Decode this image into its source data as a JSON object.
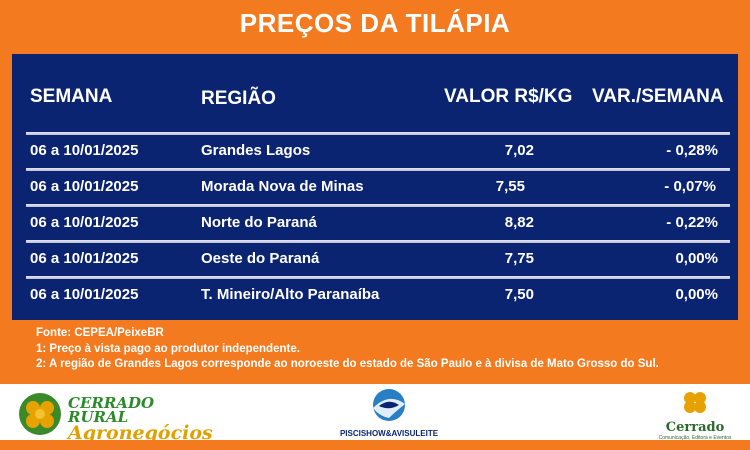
{
  "header": {
    "title": "PREÇOS DA TILÁPIA"
  },
  "table": {
    "columns": {
      "week": "SEMANA",
      "region": "REGIÃO",
      "value": "VALOR R$/KG",
      "variation": "VAR./SEMANA"
    },
    "rows": [
      {
        "week": "06 a 10/01/2025",
        "region": "Grandes Lagos",
        "value": "7,02",
        "variation": "- 0,28%"
      },
      {
        "week": "06 a 10/01/2025",
        "region": "Morada Nova de Minas",
        "value": "7,55",
        "variation": "- 0,07%"
      },
      {
        "week": "06 a 10/01/2025",
        "region": "Norte do Paraná",
        "value": "8,82",
        "variation": "- 0,22%"
      },
      {
        "week": "06 a 10/01/2025",
        "region": "Oeste do Paraná",
        "value": "7,75",
        "variation": "0,00%"
      },
      {
        "week": "06 a 10/01/2025",
        "region": "T. Mineiro/Alto Paranaíba",
        "value": "7,50",
        "variation": "0,00%"
      }
    ]
  },
  "notes": {
    "source": "Fonte: CEPEA/PeixeBR",
    "note1": "1: Preço à vista pago ao produtor independente.",
    "note2": "2: A região de Grandes Lagos corresponde ao noroeste do estado de São Paulo e à divisa de Mato Grosso do Sul."
  },
  "footer": {
    "logo_left": {
      "line1": "CERRADO RURAL",
      "line2": "Agronegócios",
      "icon": "coffee-beans-icon"
    },
    "logo_center": {
      "text": "PISCISHOW&AVISULEITE",
      "icon": "fish-globe-icon"
    },
    "logo_right": {
      "text": "Cerrado",
      "subtitle": "Comunicação, Editora e Eventos",
      "icon": "coffee-cluster-icon"
    }
  },
  "colors": {
    "orange": "#f47a20",
    "navy": "#0b2471",
    "white": "#ffffff"
  }
}
